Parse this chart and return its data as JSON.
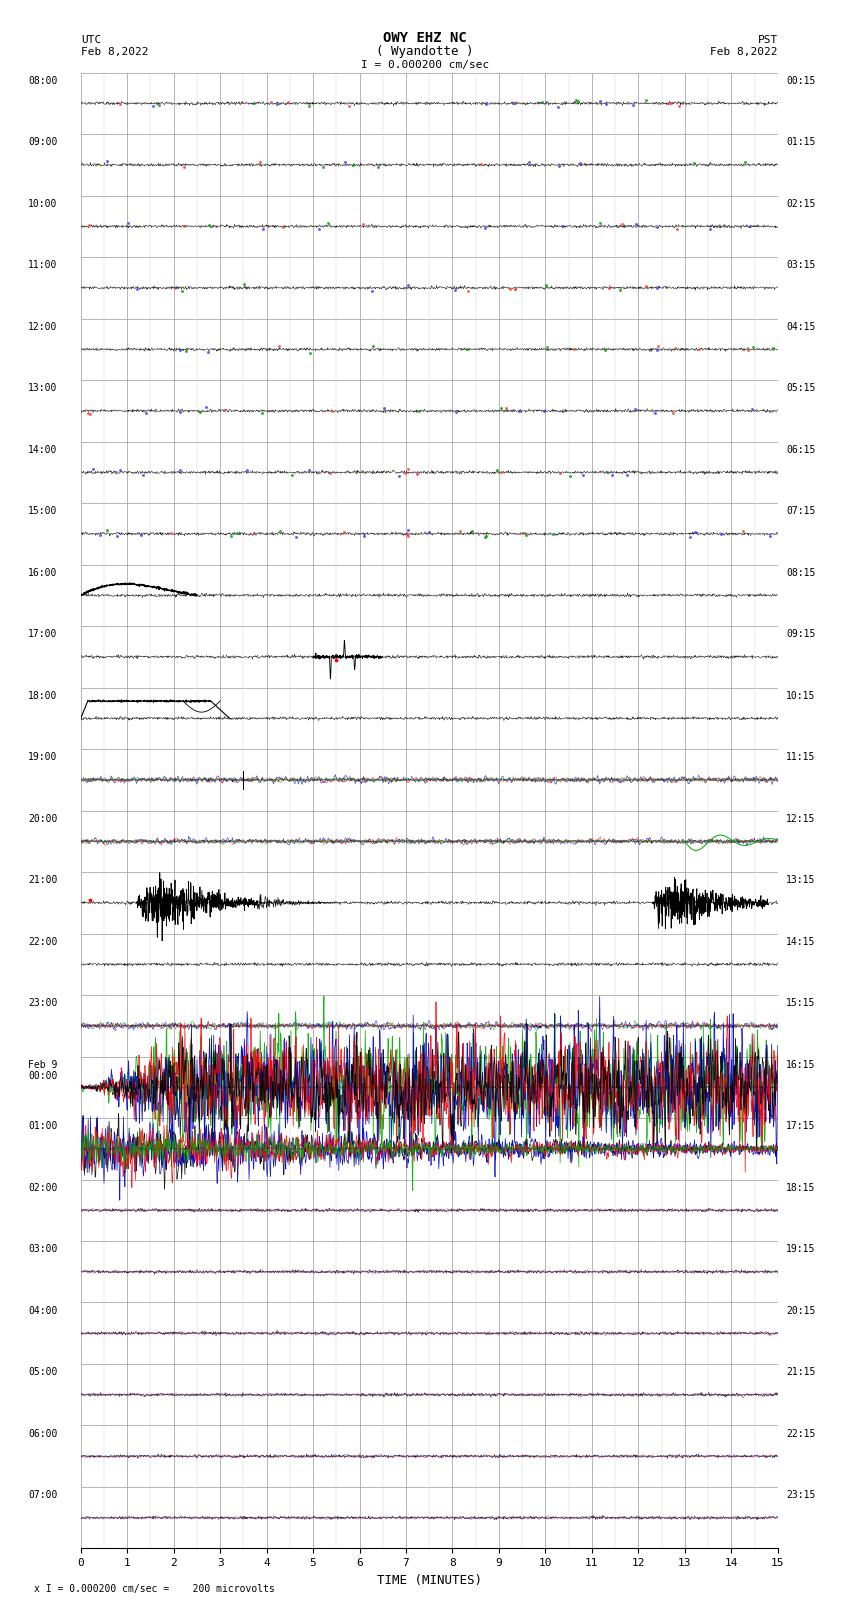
{
  "title_line1": "OWY EHZ NC",
  "title_line2": "( Wyandotte )",
  "scale_text": "I = 0.000200 cm/sec",
  "left_header_line1": "UTC",
  "left_header_line2": "Feb 8,2022",
  "right_header_line1": "PST",
  "right_header_line2": "Feb 8,2022",
  "footer_text": "x I = 0.000200 cm/sec =    200 microvolts",
  "xlabel": "TIME (MINUTES)",
  "bg_color": "#ffffff",
  "grid_minor_color": "#cccccc",
  "grid_major_color": "#999999",
  "num_rows": 24,
  "utc_labels": [
    "08:00",
    "09:00",
    "10:00",
    "11:00",
    "12:00",
    "13:00",
    "14:00",
    "15:00",
    "16:00",
    "17:00",
    "18:00",
    "19:00",
    "20:00",
    "21:00",
    "22:00",
    "23:00",
    "Feb 9\n00:00",
    "01:00",
    "02:00",
    "03:00",
    "04:00",
    "05:00",
    "06:00",
    "07:00"
  ],
  "pst_labels": [
    "00:15",
    "01:15",
    "02:15",
    "03:15",
    "04:15",
    "05:15",
    "06:15",
    "07:15",
    "08:15",
    "09:15",
    "10:15",
    "11:15",
    "12:15",
    "13:15",
    "14:15",
    "15:15",
    "16:15",
    "17:15",
    "18:15",
    "19:15",
    "20:15",
    "21:15",
    "22:15",
    "23:15"
  ]
}
